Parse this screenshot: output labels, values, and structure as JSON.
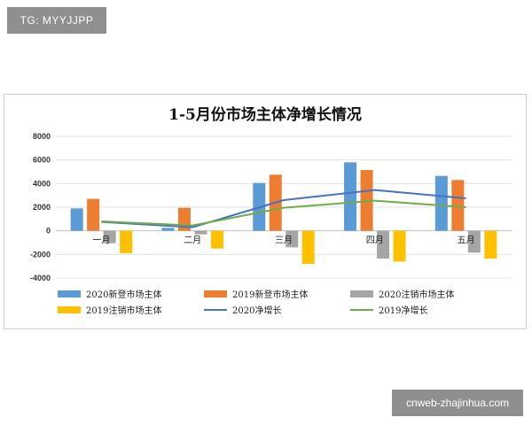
{
  "watermarks": {
    "top": "TG: MYYJJPP",
    "bottom": "cnweb-zhajinhua.com"
  },
  "chart_data": {
    "type": "bar",
    "title": "1-5月份市场主体净增长情况",
    "categories": [
      "一月",
      "二月",
      "三月",
      "四月",
      "五月"
    ],
    "yticks": [
      "8000",
      "6000",
      "4000",
      "2000",
      "0",
      "-2000",
      "-4000"
    ],
    "ylim": [
      -4000,
      8000
    ],
    "grid": true,
    "legend_position": "bottom",
    "series": [
      {
        "name": "2020新登市场主体",
        "kind": "bar",
        "color": "#5b9bd5",
        "values": [
          1900,
          250,
          4050,
          5800,
          4650
        ]
      },
      {
        "name": "2019新登市场主体",
        "kind": "bar",
        "color": "#ed7d31",
        "values": [
          2700,
          1950,
          4750,
          5150,
          4300
        ]
      },
      {
        "name": "2020注销市场主体",
        "kind": "bar",
        "color": "#a5a5a5",
        "values": [
          -1050,
          -300,
          -1400,
          -2350,
          -1850
        ]
      },
      {
        "name": "2019注销市场主体",
        "kind": "bar",
        "color": "#ffc000",
        "values": [
          -1900,
          -1500,
          -2800,
          -2600,
          -2350
        ]
      },
      {
        "name": "2020净增长",
        "kind": "line",
        "color": "#4472c4",
        "values": [
          750,
          300,
          2600,
          3450,
          2750
        ]
      },
      {
        "name": "2019净增长",
        "kind": "line",
        "color": "#70ad47",
        "values": [
          800,
          450,
          1950,
          2550,
          2000
        ]
      }
    ]
  }
}
